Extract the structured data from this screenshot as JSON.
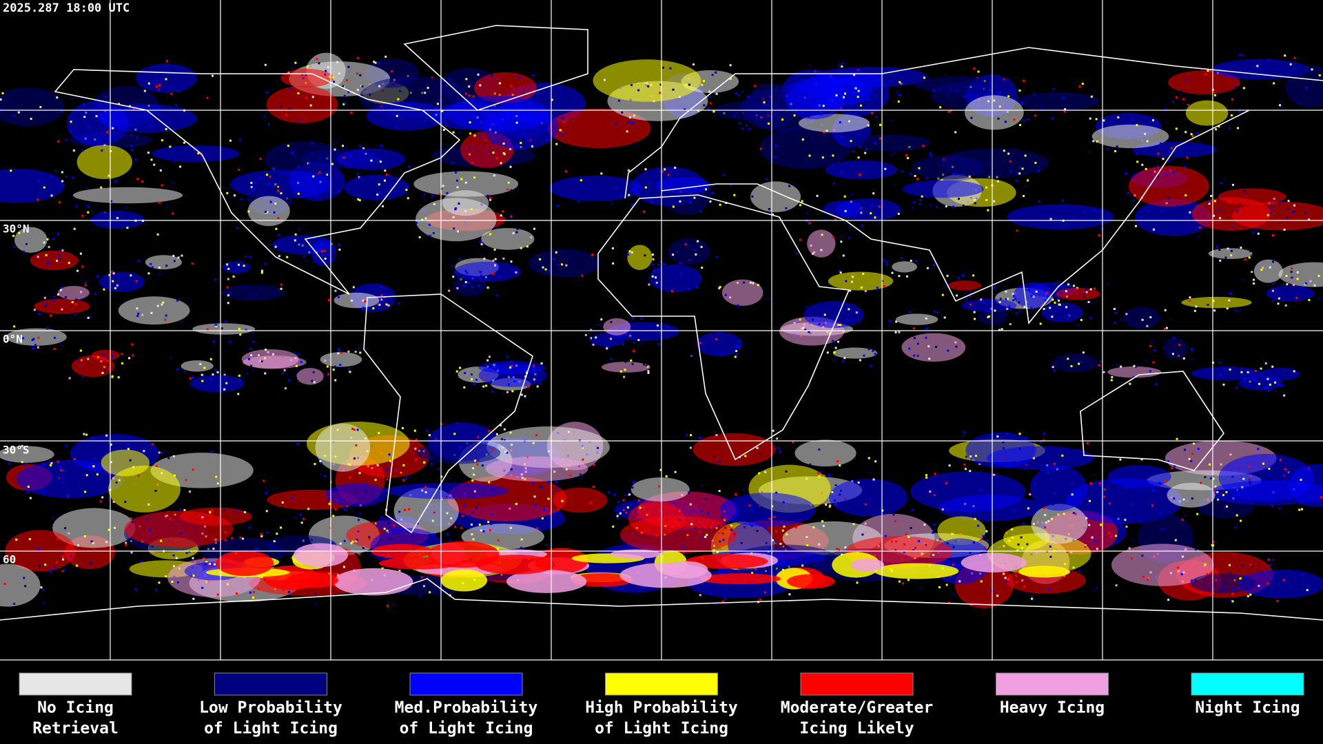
{
  "header": {
    "timestamp": "2025.287 18:00 UTC"
  },
  "map": {
    "latitude_labels": [
      "30°N",
      "0°N",
      "30°S",
      "60"
    ]
  },
  "legend": [
    {
      "label_lines": [
        "No Icing",
        "Retrieval"
      ],
      "color": "#e6e6e6"
    },
    {
      "label_lines": [
        "Low Probability",
        "of Light Icing"
      ],
      "color": "#000080"
    },
    {
      "label_lines": [
        "Med.Probability",
        "of Light Icing"
      ],
      "color": "#0000ff"
    },
    {
      "label_lines": [
        "High Probability",
        "of Light Icing"
      ],
      "color": "#ffff00"
    },
    {
      "label_lines": [
        "Moderate/Greater",
        "Icing Likely"
      ],
      "color": "#ff0000"
    },
    {
      "label_lines": [
        "Heavy Icing"
      ],
      "color": "#f0a0e0"
    },
    {
      "label_lines": [
        "Night Icing"
      ],
      "color": "#00ffff"
    }
  ]
}
